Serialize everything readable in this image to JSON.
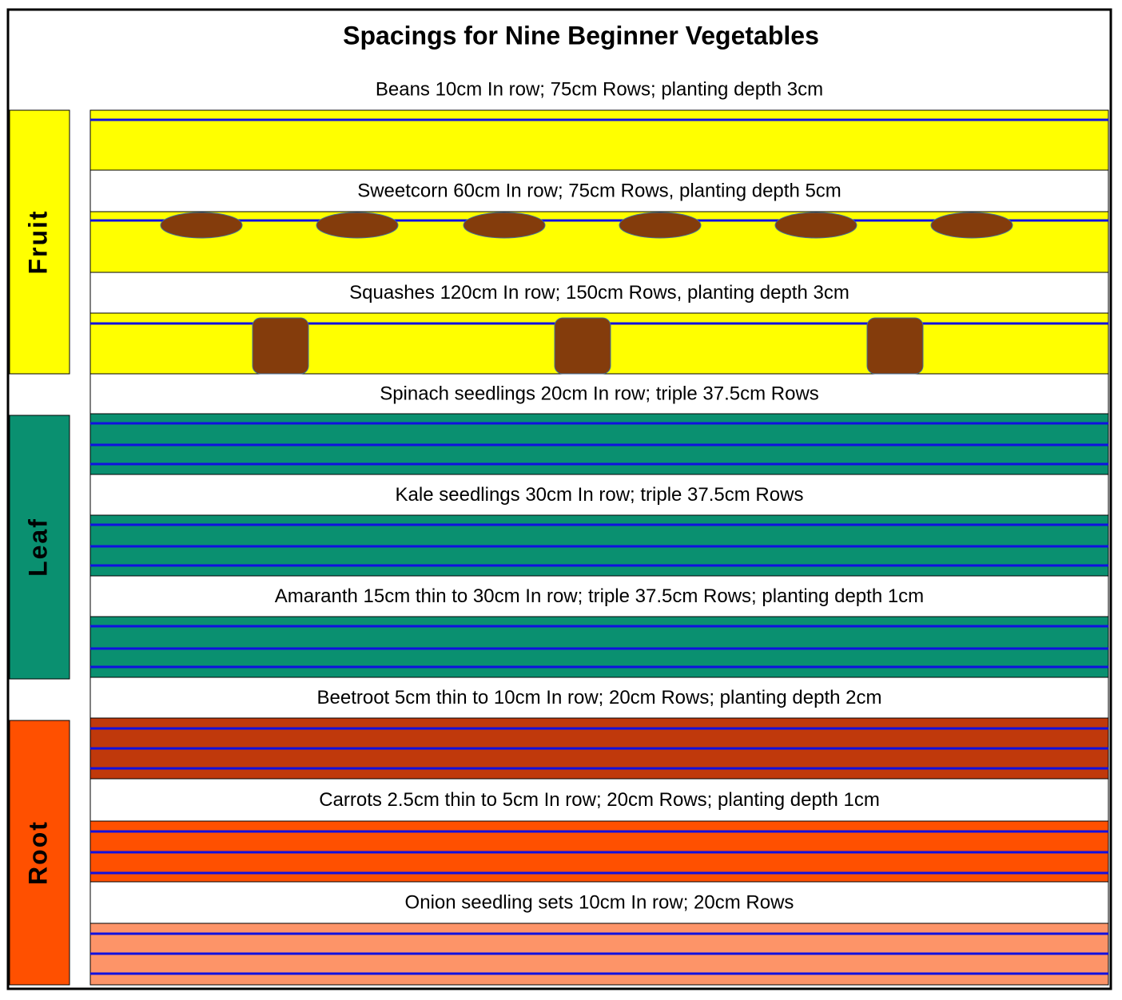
{
  "title": "Spacings for Nine Beginner Vegetables",
  "rows": [
    "Beans 10cm In row; 75cm Rows; planting depth 3cm",
    "Sweetcorn 60cm In row; 75cm Rows, planting depth 5cm",
    "Squashes 120cm In row; 150cm Rows, planting depth 3cm",
    "Spinach seedlings 20cm In row; triple 37.5cm Rows",
    "Kale seedlings 30cm In row; triple 37.5cm Rows",
    "Amaranth 15cm thin to 30cm In row; triple 37.5cm Rows; planting depth 1cm",
    "Beetroot 5cm thin to 10cm In row; 20cm Rows; planting depth 2cm",
    "Carrots 2.5cm thin to 5cm In row; 20cm Rows; planting depth 1cm",
    "Onion seedling sets 10cm In row; 20cm Rows"
  ],
  "groups": [
    "Fruit",
    "Leaf",
    "Root"
  ]
}
